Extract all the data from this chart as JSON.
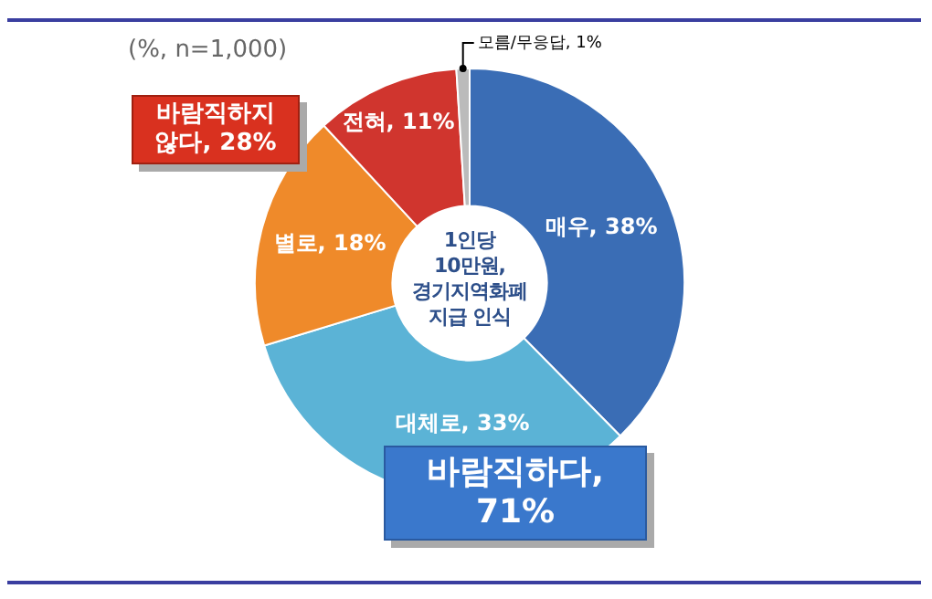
{
  "chart_data": {
    "type": "donut",
    "subtitle": "(%, n=1,000)",
    "categories": [
      "매우",
      "대체로",
      "별로",
      "전혀",
      "모름/무응답"
    ],
    "values": [
      38,
      33,
      18,
      11,
      1
    ],
    "value_labels": [
      "38%",
      "33%",
      "18%",
      "11%",
      "1%"
    ],
    "colors": [
      "#3a6db5",
      "#5bb3d6",
      "#ef8a2a",
      "#d0352e",
      "#bbbbbb"
    ],
    "annotations": [
      "1인당\n10만원,\n경기지역화폐\n지급 인식",
      "바람직하다,\n71%",
      "바람직하지\n않다, 28%"
    ],
    "legend": false
  }
}
